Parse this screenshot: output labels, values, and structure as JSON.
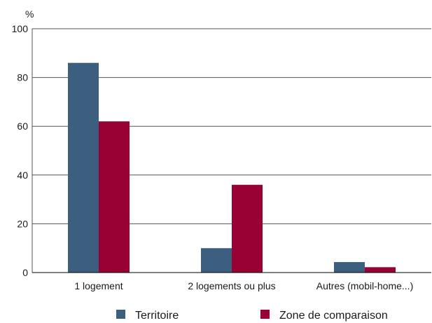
{
  "chart_data": {
    "type": "bar",
    "ylabel": "%",
    "ylim": [
      0,
      100
    ],
    "yticks": [
      0,
      20,
      40,
      60,
      80,
      100
    ],
    "grid": true,
    "legend_position": "bottom",
    "categories": [
      "1 logement",
      "2 logements ou plus",
      "Autres (mobil-home...)"
    ],
    "series": [
      {
        "name": "Territoire",
        "color": "#3c5e7f",
        "values": [
          86,
          10,
          4.3
        ]
      },
      {
        "name": "Zone de comparaison",
        "color": "#990033",
        "values": [
          62,
          36,
          2.2
        ]
      }
    ]
  }
}
